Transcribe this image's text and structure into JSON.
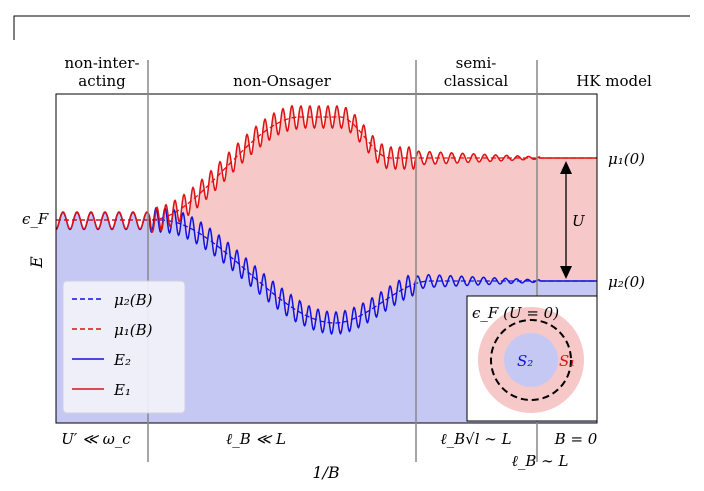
{
  "regions": [
    {
      "line1": "non-inter-",
      "line2": "acting"
    },
    {
      "line1": "non-Onsager",
      "line2": ""
    },
    {
      "line1": "semi-",
      "line2": "classical"
    },
    {
      "line1": "HK model",
      "line2": ""
    }
  ],
  "axes": {
    "ylabel": "E",
    "xlabel": "1/B",
    "ytick": "ϵ_F"
  },
  "right_labels": {
    "mu1_0": "μ₁(0)",
    "mu2_0": "μ₂(0)",
    "U": "U"
  },
  "bottom_labels": {
    "b1": "U′ ≪ ω_c",
    "b2": "ℓ_B ≪ L",
    "b3": "ℓ_B√l ∼ L",
    "b4": "B = 0",
    "b5": "ℓ_B ∼ L"
  },
  "legend": [
    {
      "label": "μ₂(B)",
      "style": "dashed",
      "color": "#1111dd"
    },
    {
      "label": "μ₁(B)",
      "style": "dashed",
      "color": "#dd1111"
    },
    {
      "label": "E₂",
      "style": "solid",
      "color": "#1111dd"
    },
    {
      "label": "E₁",
      "style": "solid",
      "color": "#dd1111"
    }
  ],
  "inset": {
    "title": "ϵ_F (U = 0)",
    "s2": "S₂",
    "s1": "S₁"
  },
  "colors": {
    "blue_fill": "#c6c8f4",
    "red_fill": "#f7c8c8",
    "blue_line": "#1111dd",
    "red_line": "#dd1111",
    "divider": "#888888"
  }
}
